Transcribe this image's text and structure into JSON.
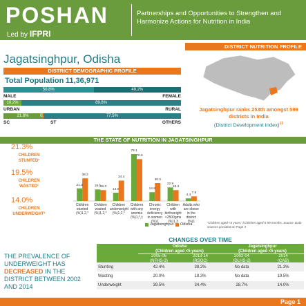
{
  "header": {
    "logo": "POSHAN",
    "led_by": "Led by",
    "led_by_org": "IFPRI",
    "tagline": "Partnerships and Opportunities to Strengthen and Harmonize Actions for Nutrition in India"
  },
  "profile_label": "DISTRICT NUTRITION PROFILE",
  "district": "Jagatsinghpur, Odisha",
  "demographic": {
    "title": "DISTRICT DEMOGRAPHIC PROFILE",
    "population_label": "Total Population",
    "population": "11,36,971",
    "bars": [
      {
        "labels": [
          "MALE",
          "FEMALE"
        ],
        "segments": [
          {
            "value": 50.8,
            "label": "50.8%"
          },
          {
            "value": 49.2,
            "label": "49.2%"
          }
        ]
      },
      {
        "labels": [
          "URBAN",
          "RURAL"
        ],
        "segments": [
          {
            "value": 10.2,
            "label": "10.2%"
          },
          {
            "value": 89.8,
            "label": "89.8%"
          }
        ]
      },
      {
        "labels": [
          "SC",
          "ST",
          "OTHERS"
        ],
        "segments": [
          {
            "value": 21.8,
            "label": "21.8%"
          },
          {
            "value": 0.7,
            "label": "0.7%"
          },
          {
            "value": 77.5,
            "label": "77.5%"
          }
        ]
      }
    ]
  },
  "rank": {
    "text": "Jagatsinghpur ranks 253th amongst 599 districts in India",
    "index": "(District Development Index)",
    "note": "13"
  },
  "nutrition": {
    "title": "THE STATE OF NUTRITION IN JAGATSINGHPUR",
    "stats": [
      {
        "value": "21.3%",
        "label": "CHILDREN STUNTED¹"
      },
      {
        "value": "19.5%",
        "label": "CHILDREN WASTED¹"
      },
      {
        "value": "14.0%",
        "label": "CHILDREN UNDERWEIGHT¹"
      }
    ],
    "footnote": "*Children aged <5 years; ‡Children aged 6-59 months. Source: Data sources provided on Page 4"
  },
  "chart_data": {
    "type": "bar",
    "categories": [
      "Children stunted (%)1,2,*",
      "Children wasted (%)1,2,*",
      "Children underweight (%)1,2,*",
      "Children with any anemia (%)1,*,‡",
      "Chronic energy deficiency in women (%)1",
      "Children with birthweight <2500gms (%)1,3",
      "Adults who are obese in the district (%)1"
    ],
    "series": [
      {
        "name": "Jagatsinghpur",
        "color": "#6aaa3a",
        "values": [
          21.3,
          19.5,
          14.0,
          79.1,
          14.8,
          22.9,
          4.4
        ],
        "value_labels": [
          "21.3",
          "19.5",
          "14.0",
          "79.1",
          "14.8",
          "22.9",
          "4.4"
        ]
      },
      {
        "name": "Odisha",
        "color": "#e8771e",
        "values": [
          38.2,
          18.3,
          34.4,
          70.6,
          30.3,
          18.3,
          7.8
        ],
        "value_labels": [
          "38.2",
          "18.3",
          "34.4",
          "70.6",
          "30.3",
          "18.3",
          "7.8"
        ]
      }
    ],
    "ylim": [
      0,
      85
    ]
  },
  "changes": {
    "title": "CHANGES OVER TIME",
    "message": [
      "THE PREVALENCE OF UNDERWEIGHT HAS",
      "DECREASED",
      "IN THE DISTRICT BETWEEN 2002 AND 2014"
    ],
    "table": {
      "groups": [
        {
          "name": "Odisha",
          "sub": "(Children aged <5 years)"
        },
        {
          "name": "Jagatsinghpur",
          "sub": "(Children aged <5 years)"
        }
      ],
      "periods": [
        {
          "year": "2005-06",
          "source": "(NFHS-3)"
        },
        {
          "year": "2013-14",
          "source": "(RSOC)"
        },
        {
          "year": "2002-04",
          "source": "(DLHS-2)"
        },
        {
          "year": "2014",
          "source": "(CAB)"
        }
      ],
      "rows": [
        [
          "Stunting",
          "42.4%",
          "38.2%",
          "No data",
          "21.3%"
        ],
        [
          "Wasting",
          "20.0%",
          "18.3%",
          "No data",
          "19.5%"
        ],
        [
          "Underweight",
          "39.5%",
          "34.4%",
          "28.7%",
          "14.0%"
        ]
      ]
    }
  },
  "footer": {
    "page": "Page 1"
  }
}
